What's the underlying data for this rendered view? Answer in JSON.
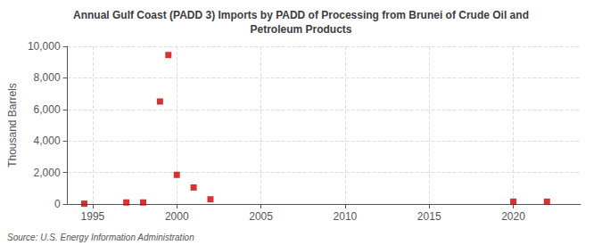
{
  "chart_data": {
    "type": "scatter",
    "title": "Annual Gulf Coast (PADD 3) Imports by PADD of Processing from Brunei of Crude Oil and\nPetroleum Products",
    "ylabel": "Thousand Barrels",
    "source": "Source: U.S. Energy Information Administration",
    "x": [
      1994.5,
      1997,
      1998,
      1999,
      1999.5,
      2000,
      2001,
      2002,
      2020,
      2022
    ],
    "values": [
      20,
      100,
      100,
      6500,
      9450,
      1850,
      1050,
      300,
      150,
      150
    ],
    "color": "#cc0000",
    "marker": "square",
    "xlim": [
      1993.5,
      2024
    ],
    "xticks": [
      1995,
      2000,
      2005,
      2010,
      2015,
      2020
    ],
    "ylim": [
      0,
      10000
    ],
    "yticks": [
      0,
      {
        "value": 2000,
        "label": "2,000"
      },
      {
        "value": 4000,
        "label": "4,000"
      },
      {
        "value": 6000,
        "label": "6,000"
      },
      {
        "value": 8000,
        "label": "8,000"
      },
      {
        "value": 10000,
        "label": "10,000"
      }
    ],
    "grid": true
  }
}
